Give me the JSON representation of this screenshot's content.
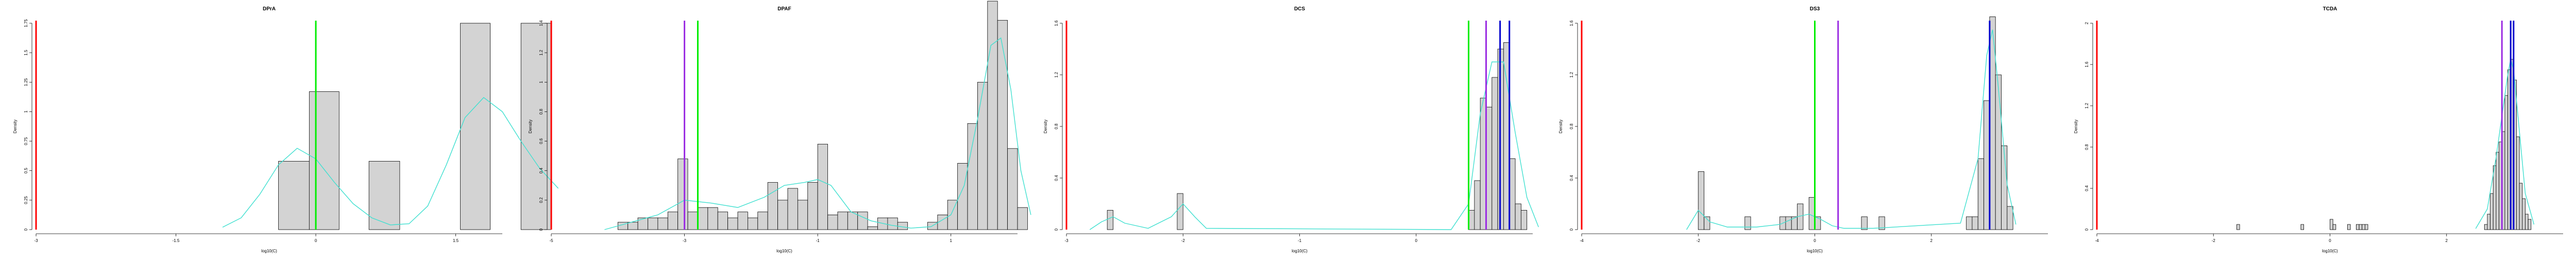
{
  "chart_data": [
    {
      "type": "histogram",
      "title": "DPrA",
      "xlabel": "log10(C)",
      "ylabel": "Density",
      "xlim": [
        -3,
        2
      ],
      "ylim": [
        0,
        1.75
      ],
      "x_ticks": [
        -3,
        -1.5,
        0,
        1.5
      ],
      "y_ticks": [
        0,
        0.25,
        0.5,
        0.75,
        1,
        1.25,
        1.5,
        1.75
      ],
      "bins": [
        {
          "x0": -0.4,
          "x1": -0.07,
          "density": 0.58
        },
        {
          "x0": -0.07,
          "x1": 0.25,
          "density": 1.17
        },
        {
          "x0": 0.25,
          "x1": 0.57,
          "density": 0
        },
        {
          "x0": 0.57,
          "x1": 0.9,
          "density": 0.58
        },
        {
          "x0": 0.9,
          "x1": 1.22,
          "density": 0
        },
        {
          "x0": 1.22,
          "x1": 1.55,
          "density": 0
        },
        {
          "x0": 1.55,
          "x1": 1.87,
          "density": 1.75
        },
        {
          "x0": 1.87,
          "x1": 2.2,
          "density": 0
        },
        {
          "x0": 2.2,
          "x1": 2.52,
          "density": 1.75
        }
      ],
      "density_curve": {
        "x": [
          -1.0,
          -0.8,
          -0.6,
          -0.4,
          -0.2,
          0.0,
          0.2,
          0.4,
          0.6,
          0.8,
          1.0,
          1.2,
          1.4,
          1.6,
          1.8,
          2.0,
          2.2,
          2.4,
          2.6
        ],
        "y": [
          0.02,
          0.1,
          0.3,
          0.55,
          0.69,
          0.6,
          0.4,
          0.22,
          0.1,
          0.04,
          0.05,
          0.2,
          0.55,
          0.95,
          1.12,
          1.0,
          0.75,
          0.52,
          0.35
        ]
      },
      "vlines": [
        {
          "x": -3.0,
          "color": "#ff0000"
        },
        {
          "x": 0.0,
          "color": "#00ee00"
        }
      ]
    },
    {
      "type": "histogram",
      "title": "DPAF",
      "xlabel": "log10(C)",
      "ylabel": "Density",
      "xlim": [
        -5,
        2
      ],
      "ylim": [
        0,
        1.4
      ],
      "x_ticks": [
        -5,
        -3,
        -1,
        1
      ],
      "y_ticks": [
        0,
        0.2,
        0.4,
        0.6,
        0.8,
        1,
        1.2,
        1.4
      ],
      "bins": [
        {
          "x0": -4.0,
          "x1": -3.85,
          "density": 0.05
        },
        {
          "x0": -3.85,
          "x1": -3.7,
          "density": 0.05
        },
        {
          "x0": -3.7,
          "x1": -3.55,
          "density": 0.08
        },
        {
          "x0": -3.55,
          "x1": -3.4,
          "density": 0.08
        },
        {
          "x0": -3.4,
          "x1": -3.25,
          "density": 0.08
        },
        {
          "x0": -3.25,
          "x1": -3.1,
          "density": 0.12
        },
        {
          "x0": -3.1,
          "x1": -2.95,
          "density": 0.48
        },
        {
          "x0": -2.95,
          "x1": -2.8,
          "density": 0.12
        },
        {
          "x0": -2.8,
          "x1": -2.65,
          "density": 0.15
        },
        {
          "x0": -2.65,
          "x1": -2.5,
          "density": 0.15
        },
        {
          "x0": -2.5,
          "x1": -2.35,
          "density": 0.12
        },
        {
          "x0": -2.35,
          "x1": -2.2,
          "density": 0.08
        },
        {
          "x0": -2.2,
          "x1": -2.05,
          "density": 0.12
        },
        {
          "x0": -2.05,
          "x1": -1.9,
          "density": 0.08
        },
        {
          "x0": -1.9,
          "x1": -1.75,
          "density": 0.12
        },
        {
          "x0": -1.75,
          "x1": -1.6,
          "density": 0.32
        },
        {
          "x0": -1.6,
          "x1": -1.45,
          "density": 0.2
        },
        {
          "x0": -1.45,
          "x1": -1.3,
          "density": 0.28
        },
        {
          "x0": -1.3,
          "x1": -1.15,
          "density": 0.2
        },
        {
          "x0": -1.15,
          "x1": -1.0,
          "density": 0.32
        },
        {
          "x0": -1.0,
          "x1": -0.85,
          "density": 0.58
        },
        {
          "x0": -0.85,
          "x1": -0.7,
          "density": 0.1
        },
        {
          "x0": -0.7,
          "x1": -0.55,
          "density": 0.12
        },
        {
          "x0": -0.55,
          "x1": -0.4,
          "density": 0.12
        },
        {
          "x0": -0.4,
          "x1": -0.25,
          "density": 0.12
        },
        {
          "x0": -0.25,
          "x1": -0.1,
          "density": 0.02
        },
        {
          "x0": -0.1,
          "x1": 0.05,
          "density": 0.08
        },
        {
          "x0": 0.05,
          "x1": 0.2,
          "density": 0.08
        },
        {
          "x0": 0.2,
          "x1": 0.35,
          "density": 0.05
        },
        {
          "x0": 0.35,
          "x1": 0.5,
          "density": 0.0
        },
        {
          "x0": 0.5,
          "x1": 0.65,
          "density": 0.0
        },
        {
          "x0": 0.65,
          "x1": 0.8,
          "density": 0.05
        },
        {
          "x0": 0.8,
          "x1": 0.95,
          "density": 0.1
        },
        {
          "x0": 0.95,
          "x1": 1.1,
          "density": 0.2
        },
        {
          "x0": 1.1,
          "x1": 1.25,
          "density": 0.45
        },
        {
          "x0": 1.25,
          "x1": 1.4,
          "density": 0.72
        },
        {
          "x0": 1.4,
          "x1": 1.55,
          "density": 1.0
        },
        {
          "x0": 1.55,
          "x1": 1.7,
          "density": 1.55
        },
        {
          "x0": 1.7,
          "x1": 1.85,
          "density": 1.42
        },
        {
          "x0": 1.85,
          "x1": 2.0,
          "density": 0.55
        },
        {
          "x0": 2.0,
          "x1": 2.15,
          "density": 0.15
        }
      ],
      "density_curve": {
        "x": [
          -4.2,
          -3.8,
          -3.4,
          -3.0,
          -2.6,
          -2.2,
          -1.8,
          -1.5,
          -1.2,
          -1.0,
          -0.8,
          -0.5,
          -0.2,
          0.1,
          0.4,
          0.7,
          1.0,
          1.2,
          1.4,
          1.6,
          1.75,
          1.9,
          2.05,
          2.2
        ],
        "y": [
          0.0,
          0.05,
          0.1,
          0.2,
          0.18,
          0.15,
          0.22,
          0.3,
          0.32,
          0.34,
          0.3,
          0.12,
          0.06,
          0.03,
          0.01,
          0.02,
          0.1,
          0.3,
          0.75,
          1.25,
          1.3,
          0.95,
          0.4,
          0.1
        ]
      },
      "vlines": [
        {
          "x": -5.0,
          "color": "#ff0000"
        },
        {
          "x": -3.0,
          "color": "#9a2be2"
        },
        {
          "x": -2.8,
          "color": "#00ee00"
        }
      ]
    },
    {
      "type": "histogram",
      "title": "DCS",
      "xlabel": "log10(C)",
      "ylabel": "Density",
      "xlim": [
        -3,
        1
      ],
      "ylim": [
        0,
        1.6
      ],
      "x_ticks": [
        -3,
        -2,
        -1,
        0
      ],
      "y_ticks": [
        0,
        0.4,
        0.8,
        1.2,
        1.6
      ],
      "bins": [
        {
          "x0": -2.65,
          "x1": -2.6,
          "density": 0.15
        },
        {
          "x0": -2.05,
          "x1": -2.0,
          "density": 0.28
        },
        {
          "x0": 0.45,
          "x1": 0.5,
          "density": 0.15
        },
        {
          "x0": 0.5,
          "x1": 0.55,
          "density": 0.38
        },
        {
          "x0": 0.55,
          "x1": 0.6,
          "density": 1.02
        },
        {
          "x0": 0.6,
          "x1": 0.65,
          "density": 0.95
        },
        {
          "x0": 0.65,
          "x1": 0.7,
          "density": 1.18
        },
        {
          "x0": 0.7,
          "x1": 0.75,
          "density": 1.4
        },
        {
          "x0": 0.75,
          "x1": 0.8,
          "density": 1.45
        },
        {
          "x0": 0.8,
          "x1": 0.85,
          "density": 0.55
        },
        {
          "x0": 0.85,
          "x1": 0.9,
          "density": 0.2
        },
        {
          "x0": 0.9,
          "x1": 0.95,
          "density": 0.15
        }
      ],
      "density_curve": {
        "x": [
          -2.8,
          -2.7,
          -2.6,
          -2.5,
          -2.3,
          -2.1,
          -2.0,
          -1.9,
          -1.8,
          0.3,
          0.45,
          0.55,
          0.65,
          0.75,
          0.85,
          0.95,
          1.05
        ],
        "y": [
          0.0,
          0.06,
          0.1,
          0.05,
          0.01,
          0.1,
          0.2,
          0.1,
          0.01,
          0.0,
          0.2,
          0.9,
          1.3,
          1.3,
          0.75,
          0.25,
          0.02
        ]
      },
      "vlines": [
        {
          "x": -3.0,
          "color": "#ff0000"
        },
        {
          "x": 0.45,
          "color": "#00ee00"
        },
        {
          "x": 0.6,
          "color": "#9a2be2"
        },
        {
          "x": 0.72,
          "color": "#0000cc"
        },
        {
          "x": 0.8,
          "color": "#0000cc"
        }
      ]
    },
    {
      "type": "histogram",
      "title": "DS3",
      "xlabel": "log10(C)",
      "ylabel": "Density",
      "xlim": [
        -4,
        4
      ],
      "ylim": [
        0,
        1.6
      ],
      "x_ticks": [
        -4,
        -2,
        0,
        2
      ],
      "y_ticks": [
        0,
        0.4,
        0.8,
        1.2,
        1.6
      ],
      "bins": [
        {
          "x0": -2.0,
          "x1": -1.9,
          "density": 0.45
        },
        {
          "x0": -1.9,
          "x1": -1.8,
          "density": 0.1
        },
        {
          "x0": -1.2,
          "x1": -1.1,
          "density": 0.1
        },
        {
          "x0": -0.6,
          "x1": -0.5,
          "density": 0.1
        },
        {
          "x0": -0.5,
          "x1": -0.4,
          "density": 0.1
        },
        {
          "x0": -0.4,
          "x1": -0.3,
          "density": 0.1
        },
        {
          "x0": -0.3,
          "x1": -0.2,
          "density": 0.2
        },
        {
          "x0": -0.1,
          "x1": 0.0,
          "density": 0.25
        },
        {
          "x0": 0.0,
          "x1": 0.1,
          "density": 0.1
        },
        {
          "x0": 0.8,
          "x1": 0.9,
          "density": 0.1
        },
        {
          "x0": 1.1,
          "x1": 1.2,
          "density": 0.1
        },
        {
          "x0": 2.6,
          "x1": 2.7,
          "density": 0.1
        },
        {
          "x0": 2.7,
          "x1": 2.8,
          "density": 0.1
        },
        {
          "x0": 2.8,
          "x1": 2.9,
          "density": 0.55
        },
        {
          "x0": 2.9,
          "x1": 3.0,
          "density": 1.0
        },
        {
          "x0": 3.0,
          "x1": 3.1,
          "density": 1.65
        },
        {
          "x0": 3.1,
          "x1": 3.2,
          "density": 1.2
        },
        {
          "x0": 3.2,
          "x1": 3.3,
          "density": 0.65
        },
        {
          "x0": 3.3,
          "x1": 3.4,
          "density": 0.18
        }
      ],
      "density_curve": {
        "x": [
          -2.2,
          -2.0,
          -1.8,
          -1.5,
          -1.0,
          -0.6,
          -0.3,
          -0.1,
          0.1,
          0.3,
          0.5,
          1.0,
          2.5,
          2.8,
          2.95,
          3.05,
          3.15,
          3.3,
          3.45
        ],
        "y": [
          0.0,
          0.15,
          0.06,
          0.02,
          0.02,
          0.04,
          0.1,
          0.12,
          0.08,
          0.03,
          0.01,
          0.01,
          0.05,
          0.55,
          1.35,
          1.55,
          1.1,
          0.35,
          0.04
        ]
      },
      "vlines": [
        {
          "x": -4.0,
          "color": "#ff0000"
        },
        {
          "x": 0.0,
          "color": "#00ee00"
        },
        {
          "x": 0.4,
          "color": "#9a2be2"
        },
        {
          "x": 3.0,
          "color": "#0000cc"
        }
      ]
    },
    {
      "type": "histogram",
      "title": "TCDA",
      "xlabel": "log10(C)",
      "ylabel": "Density",
      "xlim": [
        -4,
        4
      ],
      "ylim": [
        0,
        2.0
      ],
      "x_ticks": [
        -4,
        -2,
        0,
        2
      ],
      "y_ticks": [
        0,
        0.4,
        0.8,
        1.2,
        1.6,
        2.0
      ],
      "bins": [
        {
          "x0": -1.6,
          "x1": -1.55,
          "density": 0.05
        },
        {
          "x0": -0.5,
          "x1": -0.45,
          "density": 0.05
        },
        {
          "x0": 0.0,
          "x1": 0.05,
          "density": 0.1
        },
        {
          "x0": 0.05,
          "x1": 0.1,
          "density": 0.05
        },
        {
          "x0": 0.3,
          "x1": 0.35,
          "density": 0.05
        },
        {
          "x0": 0.45,
          "x1": 0.5,
          "density": 0.05
        },
        {
          "x0": 0.5,
          "x1": 0.55,
          "density": 0.05
        },
        {
          "x0": 0.55,
          "x1": 0.6,
          "density": 0.05
        },
        {
          "x0": 0.6,
          "x1": 0.65,
          "density": 0.05
        },
        {
          "x0": 2.65,
          "x1": 2.7,
          "density": 0.05
        },
        {
          "x0": 2.7,
          "x1": 2.75,
          "density": 0.15
        },
        {
          "x0": 2.75,
          "x1": 2.8,
          "density": 0.35
        },
        {
          "x0": 2.8,
          "x1": 2.85,
          "density": 0.62
        },
        {
          "x0": 2.85,
          "x1": 2.9,
          "density": 0.75
        },
        {
          "x0": 2.9,
          "x1": 2.95,
          "density": 0.85
        },
        {
          "x0": 2.95,
          "x1": 3.0,
          "density": 0.95
        },
        {
          "x0": 3.0,
          "x1": 3.05,
          "density": 1.3
        },
        {
          "x0": 3.05,
          "x1": 3.1,
          "density": 1.55
        },
        {
          "x0": 3.1,
          "x1": 3.15,
          "density": 1.65
        },
        {
          "x0": 3.15,
          "x1": 3.2,
          "density": 1.45
        },
        {
          "x0": 3.2,
          "x1": 3.25,
          "density": 0.9
        },
        {
          "x0": 3.25,
          "x1": 3.3,
          "density": 0.45
        },
        {
          "x0": 3.3,
          "x1": 3.35,
          "density": 0.3
        },
        {
          "x0": 3.35,
          "x1": 3.4,
          "density": 0.15
        },
        {
          "x0": 3.4,
          "x1": 3.45,
          "density": 0.1
        }
      ],
      "density_curve": {
        "x": [
          2.5,
          2.7,
          2.85,
          2.95,
          3.05,
          3.1,
          3.15,
          3.25,
          3.35,
          3.5
        ],
        "y": [
          0.01,
          0.2,
          0.7,
          1.1,
          1.5,
          1.65,
          1.55,
          0.95,
          0.35,
          0.05
        ]
      },
      "vlines": [
        {
          "x": -4.0,
          "color": "#ff0000"
        },
        {
          "x": 2.95,
          "color": "#9a2be2"
        },
        {
          "x": 3.1,
          "color": "#0000cc"
        },
        {
          "x": 3.15,
          "color": "#0000cc"
        }
      ]
    }
  ]
}
